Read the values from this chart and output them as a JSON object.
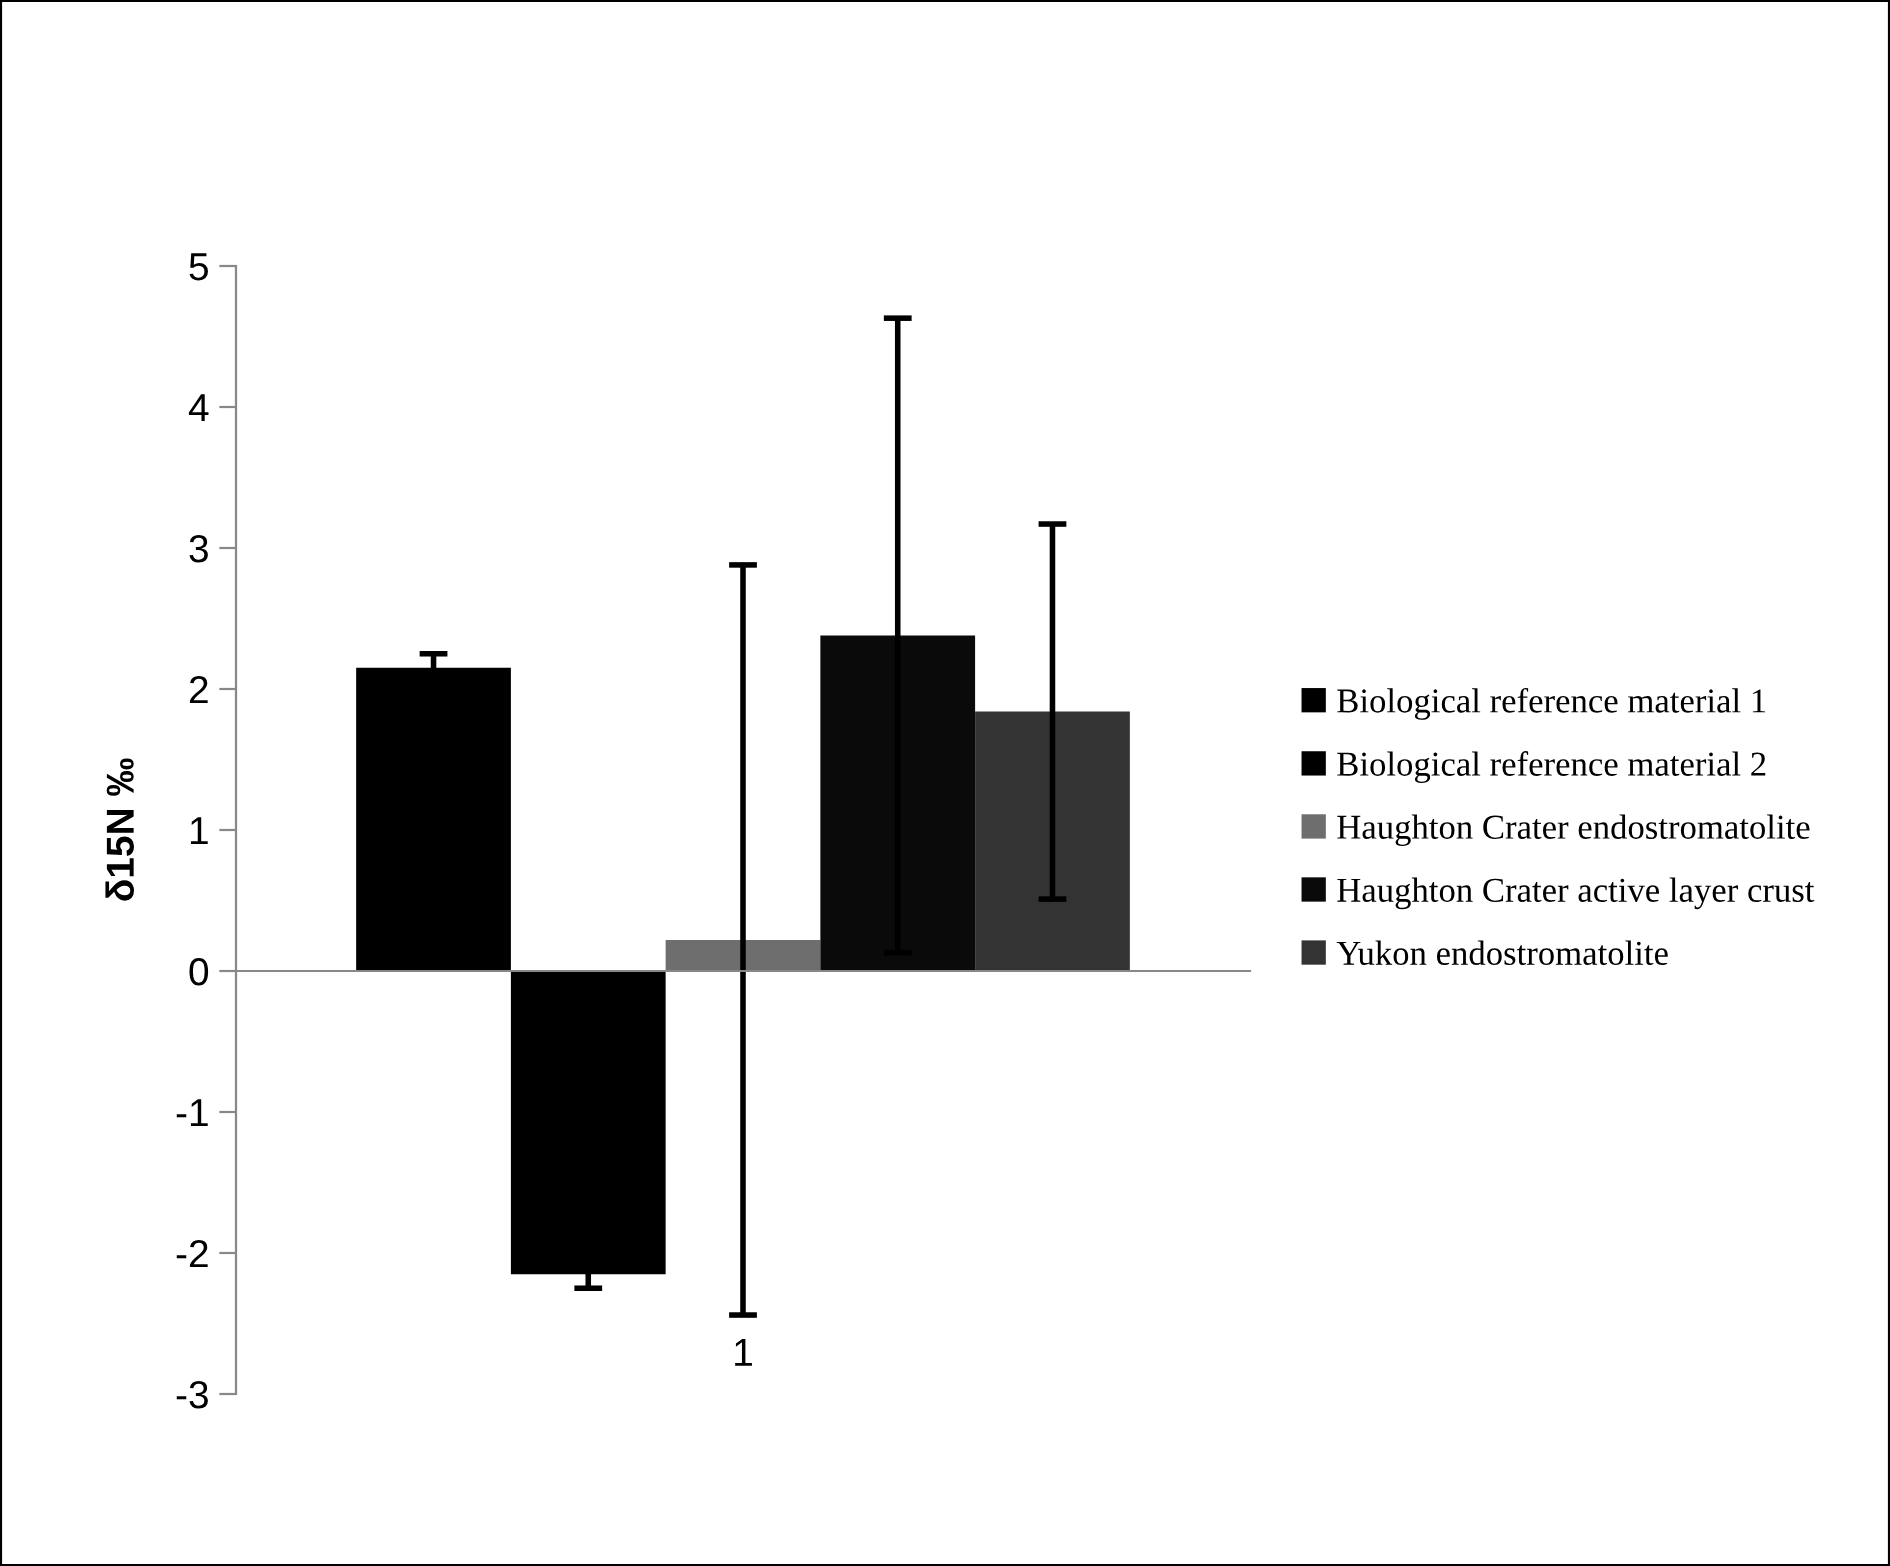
{
  "chart_data": {
    "type": "bar",
    "ylabel": "δ15N ‰",
    "categories": [
      "1"
    ],
    "series": [
      {
        "name": "Biological reference material 1",
        "color": "#000000",
        "values": [
          2.15
        ],
        "errors": [
          0.1
        ]
      },
      {
        "name": "Biological reference material 2",
        "color": "#000000",
        "values": [
          -2.15
        ],
        "errors": [
          0.1
        ]
      },
      {
        "name": "Haughton Crater endostromatolite",
        "color": "#6e6e6e",
        "values": [
          0.22
        ],
        "errors": [
          2.66
        ]
      },
      {
        "name": "Haughton Crater active layer crust",
        "color": "#0a0a0a",
        "values": [
          2.38
        ],
        "errors": [
          2.25
        ]
      },
      {
        "name": "Yukon endostromatolite",
        "color": "#333333",
        "values": [
          1.84
        ],
        "errors": [
          1.33
        ]
      }
    ],
    "ylim": [
      -3,
      5
    ],
    "yticks": [
      -3,
      -2,
      -1,
      0,
      1,
      2,
      3,
      4,
      5
    ],
    "legend": "right"
  }
}
